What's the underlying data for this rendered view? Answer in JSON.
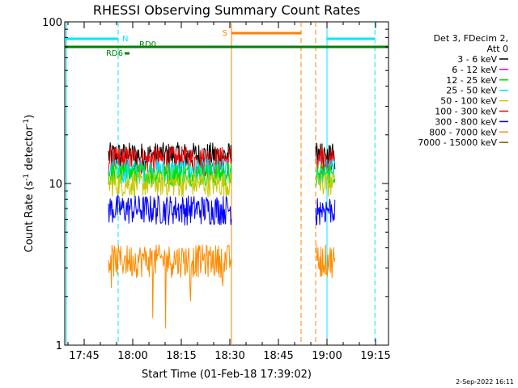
{
  "chart_data": {
    "type": "line",
    "title": "RHESSI Observing Summary Count Rates",
    "xlabel": "Start Time (01-Feb-18 17:39:02)",
    "ylabel": "Count Rate (s",
    "ylabel_sup": "-1",
    "ylabel_tail": " detector",
    "ylabel_sup2": "-1",
    "ylabel_close": ")",
    "x_ticks": [
      "17:45",
      "18:00",
      "18:15",
      "18:30",
      "18:45",
      "19:00",
      "19:15"
    ],
    "x_tick_minutes": [
      6,
      21,
      36,
      51,
      66,
      81,
      96
    ],
    "y_ticks": [
      "1",
      "10",
      "100"
    ],
    "ylim": [
      1,
      100
    ],
    "xlim_minutes": [
      0,
      100
    ],
    "log_y": true,
    "legend_header": [
      "Det 3, FDecim 2,",
      "Att 0"
    ],
    "legend": [
      {
        "label": "3 - 6 keV",
        "color": "#000000"
      },
      {
        "label": "6 - 12 keV",
        "color": "#e000e0"
      },
      {
        "label": "12 - 25 keV",
        "color": "#00e000"
      },
      {
        "label": "25 - 50 keV",
        "color": "#00e0ff"
      },
      {
        "label": "50 - 100 keV",
        "color": "#c8c800"
      },
      {
        "label": "100 - 300 keV",
        "color": "#ff0000"
      },
      {
        "label": "300 - 800 keV",
        "color": "#0000ff"
      },
      {
        "label": "800 - 7000 keV",
        "color": "#ff8c00"
      },
      {
        "label": "7000 - 15000 keV",
        "color": "#806000"
      }
    ],
    "flags": [
      {
        "label": "N",
        "color": "#00e8ff",
        "start": 0,
        "end": 16.5,
        "level": 0
      },
      {
        "label": "S",
        "color": "#ff8000",
        "start": 51.5,
        "end": 73.0,
        "level": 1
      },
      {
        "label": "",
        "color": "#00e8ff",
        "start": 81.0,
        "end": 95.8,
        "level": 0
      },
      {
        "label": "RD0",
        "color": "#008000",
        "start": 0,
        "end": 100,
        "level": 2
      },
      {
        "label": "RD6",
        "color": "#008000",
        "start": 18.5,
        "end": 20.0,
        "level": 3
      }
    ],
    "vlines": [
      {
        "minute": 0.5,
        "color": "#00e8ff",
        "style": "solid"
      },
      {
        "minute": 16.5,
        "color": "#00e8ff",
        "style": "dashed"
      },
      {
        "minute": 51.5,
        "color": "#ff8000",
        "style": "solid"
      },
      {
        "minute": 73.0,
        "color": "#ff8000",
        "style": "dashed"
      },
      {
        "minute": 77.5,
        "color": "#ff8000",
        "style": "dashed"
      },
      {
        "minute": 81.0,
        "color": "#00e8ff",
        "style": "solid"
      },
      {
        "minute": 95.8,
        "color": "#00e8ff",
        "style": "dashed"
      }
    ],
    "segments": [
      {
        "start": 13.5,
        "end": 51.5
      },
      {
        "start": 77.5,
        "end": 83.5
      }
    ],
    "series": [
      {
        "name": "3 - 6 keV",
        "color": "#000000",
        "center": 15.0,
        "jitter": 3.0
      },
      {
        "name": "100 - 300 keV",
        "color": "#ff0000",
        "center": 14.0,
        "jitter": 3.0
      },
      {
        "name": "25 - 50 keV",
        "color": "#00e0ff",
        "center": 12.0,
        "jitter": 2.2
      },
      {
        "name": "12 - 25 keV",
        "color": "#00e000",
        "center": 11.5,
        "jitter": 2.0
      },
      {
        "name": "50 - 100 keV",
        "color": "#c8c800",
        "center": 10.0,
        "jitter": 1.8
      },
      {
        "name": "300 - 800 keV",
        "color": "#0000ff",
        "center": 7.0,
        "jitter": 1.5
      },
      {
        "name": "800 - 7000 keV",
        "color": "#ff8c00",
        "center": 3.4,
        "jitter": 0.8
      }
    ],
    "footer_date": "2-Sep-2022 16:11"
  }
}
